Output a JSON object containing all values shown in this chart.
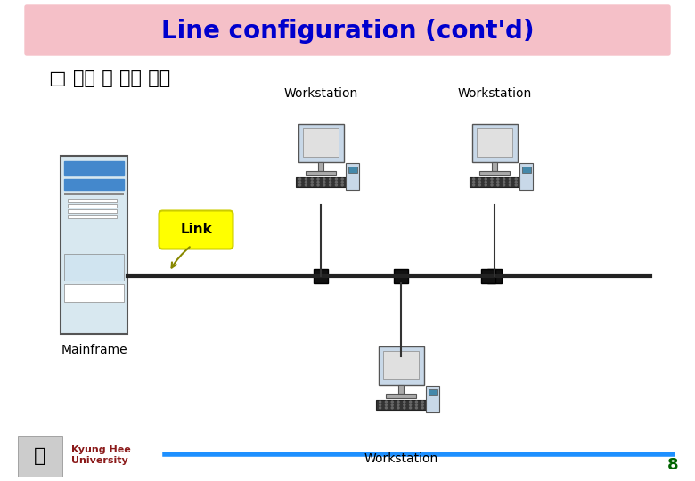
{
  "title": "Line configuration (cont'd)",
  "title_color": "#0000CD",
  "title_bg_color": "#F5C0C8",
  "subtitle": "□ 다중 점 회선 구성",
  "subtitle_color": "#000000",
  "bg_color": "#FFFFFF",
  "footer_line_color": "#1E90FF",
  "footer_text": "Kyung Hee\nUniversity",
  "footer_number": "8",
  "footer_color": "#006400",
  "label_mainframe": "Mainframe",
  "label_workstation1": "Workstation",
  "label_workstation2": "Workstation",
  "label_workstation3": "Workstation",
  "label_link": "Link",
  "link_bg_color": "#FFFF00",
  "link_text_color": "#000000"
}
